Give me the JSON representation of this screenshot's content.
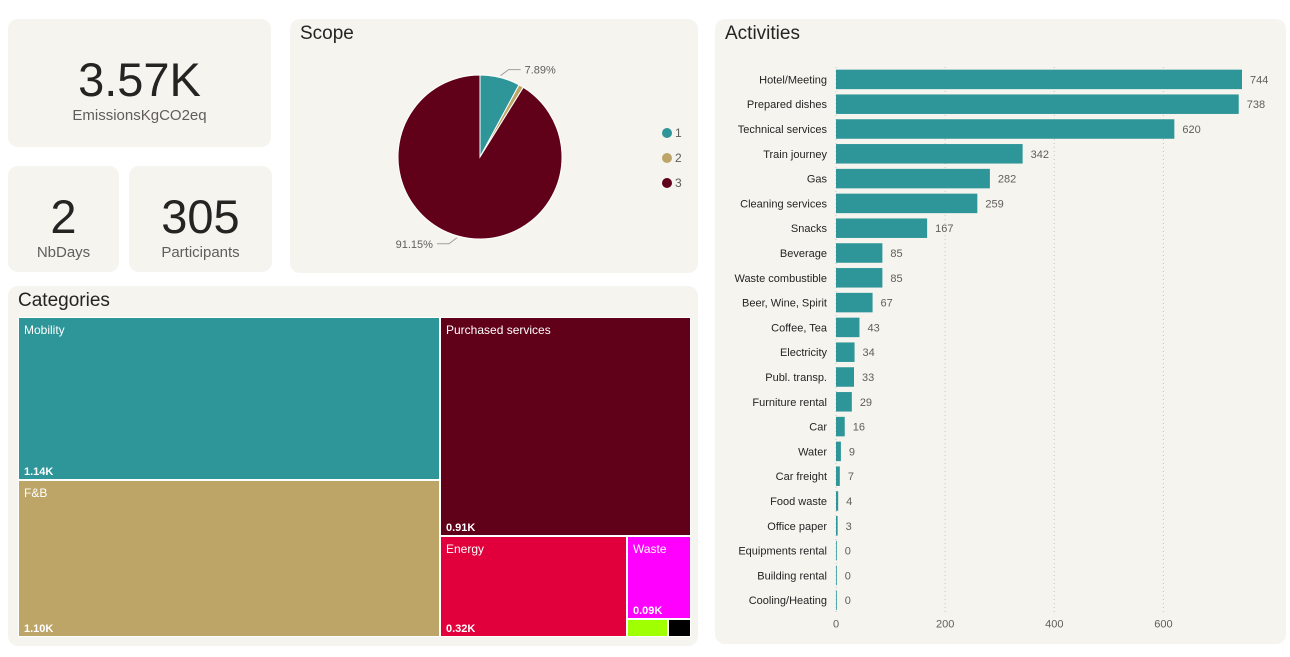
{
  "kpis": {
    "emissions": {
      "value": "3.57K",
      "label": "EmissionsKgCO2eq"
    },
    "nbdays": {
      "value": "2",
      "label": "NbDays"
    },
    "participants": {
      "value": "305",
      "label": "Participants"
    }
  },
  "scope": {
    "title": "Scope",
    "colors": [
      "#2e9598",
      "#bca566",
      "#600019"
    ]
  },
  "categories": {
    "title": "Categories"
  },
  "activities": {
    "title": "Activities",
    "bar_color": "#2e9598"
  },
  "chart_data": [
    {
      "type": "pie",
      "labels": [
        "1",
        "2",
        "3"
      ],
      "values": [
        7.89,
        0.96,
        91.15
      ],
      "data_labels": [
        "7.89%",
        "",
        "91.15%"
      ],
      "legend_position": "right"
    },
    {
      "type": "treemap",
      "labels": [
        "Mobility",
        "F&B",
        "Purchased services",
        "Energy",
        "Waste",
        "",
        ""
      ],
      "values": [
        1140,
        1100,
        910,
        320,
        90,
        null,
        null
      ],
      "value_labels": [
        "1.14K",
        "1.10K",
        "0.91K",
        "0.32K",
        "0.09K",
        "",
        ""
      ],
      "colors": [
        "#2e9598",
        "#bca566",
        "#600019",
        "#e1003b",
        "#ff00ff",
        "#a0ff00",
        "#000000"
      ]
    },
    {
      "type": "bar",
      "orientation": "horizontal",
      "categories": [
        "Hotel/Meeting",
        "Prepared dishes",
        "Technical services",
        "Train journey",
        "Gas",
        "Cleaning services",
        "Snacks",
        "Beverage",
        "Waste combustible",
        "Beer, Wine, Spirit",
        "Coffee, Tea",
        "Electricity",
        "Publ. transp.",
        "Furniture rental",
        "Car",
        "Water",
        "Car freight",
        "Food waste",
        "Office paper",
        "Equipments rental",
        "Building rental",
        "Cooling/Heating"
      ],
      "values": [
        744,
        738,
        620,
        342,
        282,
        259,
        167,
        85,
        85,
        67,
        43,
        34,
        33,
        29,
        16,
        9,
        7,
        4,
        3,
        0,
        0,
        0
      ],
      "xlim": [
        0,
        744
      ],
      "xticks": [
        0,
        200,
        400,
        600
      ],
      "grid": true
    }
  ]
}
